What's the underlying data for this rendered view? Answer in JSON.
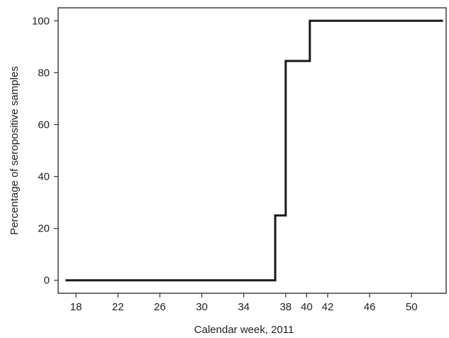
{
  "chart_data": {
    "type": "line",
    "step": true,
    "title": "",
    "xlabel": "Calendar week, 2011",
    "ylabel": "Percentage of seropositive samples",
    "xlim": [
      16.3,
      53.3
    ],
    "ylim": [
      -5,
      105
    ],
    "x_ticks": [
      18,
      22,
      26,
      30,
      34,
      38,
      40,
      42,
      46,
      50
    ],
    "y_ticks": [
      0,
      20,
      40,
      60,
      80,
      100
    ],
    "grid": false,
    "legend": "none",
    "series": [
      {
        "color": "#1a1a1a",
        "points": [
          [
            17,
            0
          ],
          [
            37,
            0
          ],
          [
            37,
            25
          ],
          [
            38,
            25
          ],
          [
            38,
            84.5
          ],
          [
            40.3,
            84.5
          ],
          [
            40.3,
            100
          ],
          [
            53,
            100
          ]
        ]
      }
    ]
  }
}
